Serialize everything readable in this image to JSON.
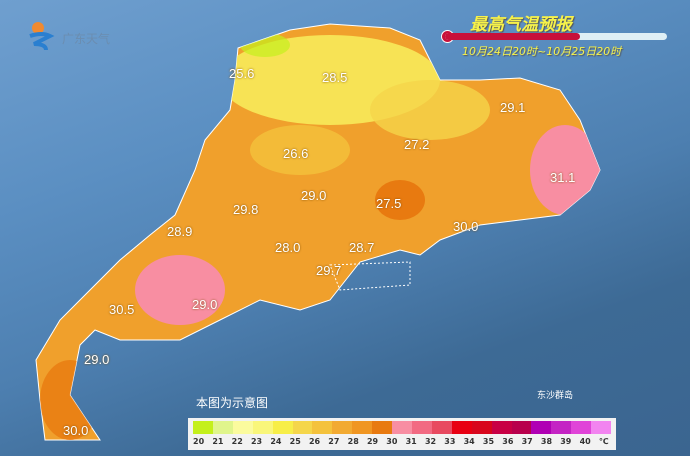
{
  "header": {
    "title": "最高气温预报",
    "period": "10月24日20时~10月25日20时",
    "logo_text": "广东天气",
    "forecast_progress_percent": 61
  },
  "map": {
    "note": "本图为示意图",
    "island_label": "东沙群岛",
    "temperatures": [
      {
        "label": "25.6"
      },
      {
        "label": "28.5"
      },
      {
        "label": "29.1"
      },
      {
        "label": "26.6"
      },
      {
        "label": "27.2"
      },
      {
        "label": "31.1"
      },
      {
        "label": "29.0"
      },
      {
        "label": "29.8"
      },
      {
        "label": "27.5"
      },
      {
        "label": "30.0"
      },
      {
        "label": "28.9"
      },
      {
        "label": "28.0"
      },
      {
        "label": "28.7"
      },
      {
        "label": "29.7"
      },
      {
        "label": "30.5"
      },
      {
        "label": "29.0"
      },
      {
        "label": "29.0"
      },
      {
        "label": "30.0"
      }
    ]
  },
  "legend": {
    "unit": "℃",
    "labels": [
      "20",
      "21",
      "22",
      "23",
      "24",
      "25",
      "26",
      "27",
      "28",
      "29",
      "30",
      "31",
      "32",
      "33",
      "34",
      "35",
      "36",
      "37",
      "38",
      "39",
      "40"
    ],
    "colors": [
      "#c4f01c",
      "#e0f58c",
      "#fbfb9e",
      "#f9f67a",
      "#f7ee48",
      "#f5d64a",
      "#f4c23c",
      "#f2aa32",
      "#f09622",
      "#e87a10",
      "#f88ea2",
      "#f26a82",
      "#e84a60",
      "#e80012",
      "#d8061c",
      "#c80044",
      "#b8004c",
      "#b000b4",
      "#c424c4",
      "#e044d8",
      "#f284f0"
    ]
  },
  "watermark": "@广东天气"
}
